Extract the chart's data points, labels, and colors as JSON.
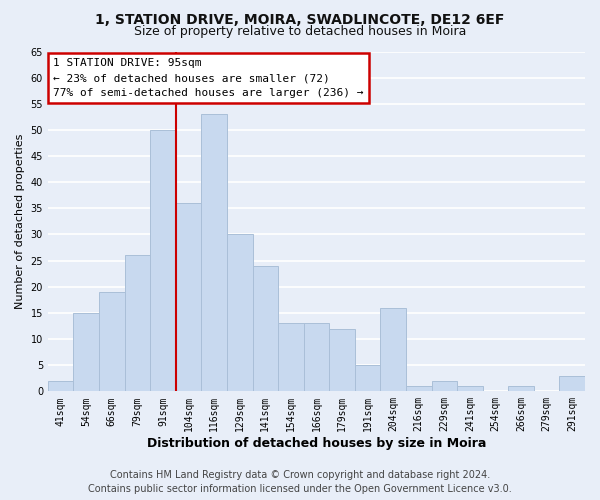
{
  "title": "1, STATION DRIVE, MOIRA, SWADLINCOTE, DE12 6EF",
  "subtitle": "Size of property relative to detached houses in Moira",
  "xlabel": "Distribution of detached houses by size in Moira",
  "ylabel": "Number of detached properties",
  "bar_labels": [
    "41sqm",
    "54sqm",
    "66sqm",
    "79sqm",
    "91sqm",
    "104sqm",
    "116sqm",
    "129sqm",
    "141sqm",
    "154sqm",
    "166sqm",
    "179sqm",
    "191sqm",
    "204sqm",
    "216sqm",
    "229sqm",
    "241sqm",
    "254sqm",
    "266sqm",
    "279sqm",
    "291sqm"
  ],
  "bar_values": [
    2,
    15,
    19,
    26,
    50,
    36,
    53,
    30,
    24,
    13,
    13,
    12,
    5,
    16,
    1,
    2,
    1,
    0,
    1,
    0,
    3
  ],
  "bar_color": "#c8d9ef",
  "bar_edge_color": "#aabfd8",
  "vline_x_idx": 4.5,
  "vline_color": "#cc0000",
  "annotation_title": "1 STATION DRIVE: 95sqm",
  "annotation_line1": "← 23% of detached houses are smaller (72)",
  "annotation_line2": "77% of semi-detached houses are larger (236) →",
  "annotation_box_facecolor": "#ffffff",
  "annotation_box_edgecolor": "#cc0000",
  "ylim": [
    0,
    65
  ],
  "yticks": [
    0,
    5,
    10,
    15,
    20,
    25,
    30,
    35,
    40,
    45,
    50,
    55,
    60,
    65
  ],
  "footer_line1": "Contains HM Land Registry data © Crown copyright and database right 2024.",
  "footer_line2": "Contains public sector information licensed under the Open Government Licence v3.0.",
  "fig_bg_color": "#e8eef8",
  "plot_bg_color": "#e8eef8",
  "grid_color": "#ffffff",
  "title_fontsize": 10,
  "subtitle_fontsize": 9,
  "xlabel_fontsize": 9,
  "ylabel_fontsize": 8,
  "tick_fontsize": 7,
  "footer_fontsize": 7
}
